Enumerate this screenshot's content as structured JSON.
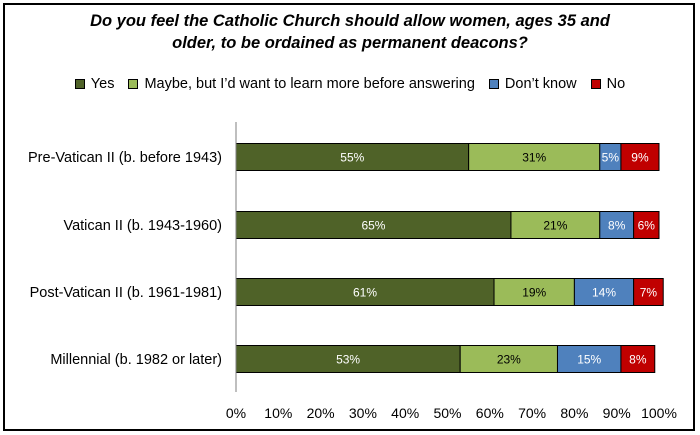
{
  "chart_data": {
    "type": "bar",
    "orientation": "horizontal",
    "stacked": true,
    "title": "Do you feel the Catholic Church should allow women, ages 35 and older, to be ordained as permanent deacons?",
    "title_lines": [
      "Do you feel the Catholic Church should allow women, ages 35 and",
      "older, to be ordained as permanent deacons?"
    ],
    "categories": [
      "Pre-Vatican II (b. before 1943)",
      "Vatican II (b. 1943-1960)",
      "Post-Vatican II (b. 1961-1981)",
      "Millennial (b. 1982 or later)"
    ],
    "series": [
      {
        "name": "Yes",
        "color": "#4f6228",
        "values": [
          55,
          65,
          61,
          53
        ]
      },
      {
        "name": "Maybe, but I’d want to learn more before answering",
        "color": "#9bbb59",
        "values": [
          31,
          21,
          19,
          23
        ]
      },
      {
        "name": "Don’t know",
        "color": "#4f81bd",
        "values": [
          5,
          8,
          14,
          15
        ]
      },
      {
        "name": "No",
        "color": "#c00000",
        "values": [
          9,
          6,
          7,
          8
        ]
      }
    ],
    "xlim": [
      0,
      100
    ],
    "x_ticks": [
      "0%",
      "10%",
      "20%",
      "30%",
      "40%",
      "50%",
      "60%",
      "70%",
      "80%",
      "90%",
      "100%"
    ],
    "value_suffix": "%",
    "grid": false,
    "legend_position": "top"
  }
}
